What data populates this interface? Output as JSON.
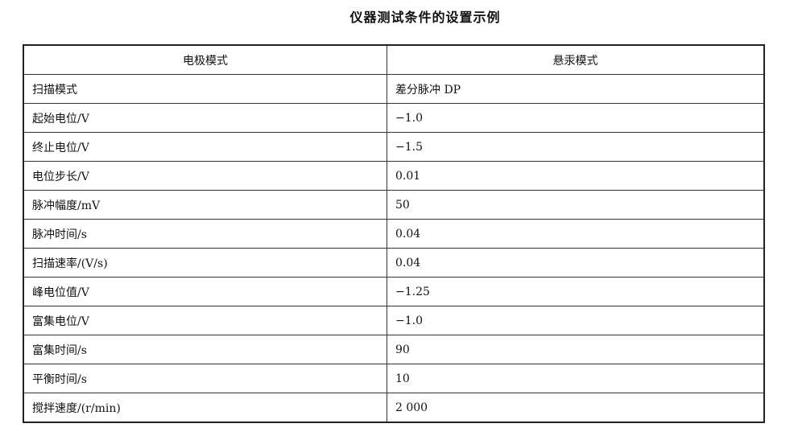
{
  "title": "仪器测试条件的设置示例",
  "table": {
    "headers": [
      "电极模式",
      "悬汞模式"
    ],
    "rows": [
      [
        "扫描模式",
        "差分脉冲 DP"
      ],
      [
        "起始电位/V",
        "−1.0"
      ],
      [
        "终止电位/V",
        "−1.5"
      ],
      [
        "电位步长/V",
        "0.01"
      ],
      [
        "脉冲幅度/mV",
        "50"
      ],
      [
        "脉冲时间/s",
        "0.04"
      ],
      [
        "扫描速率/(V/s)",
        "0.04"
      ],
      [
        "峰电位值/V",
        "−1.25"
      ],
      [
        "富集电位/V",
        "−1.0"
      ],
      [
        "富集时间/s",
        "90"
      ],
      [
        "平衡时间/s",
        "10"
      ],
      [
        "搅拌速度/(r/min)",
        "2 000"
      ]
    ]
  }
}
